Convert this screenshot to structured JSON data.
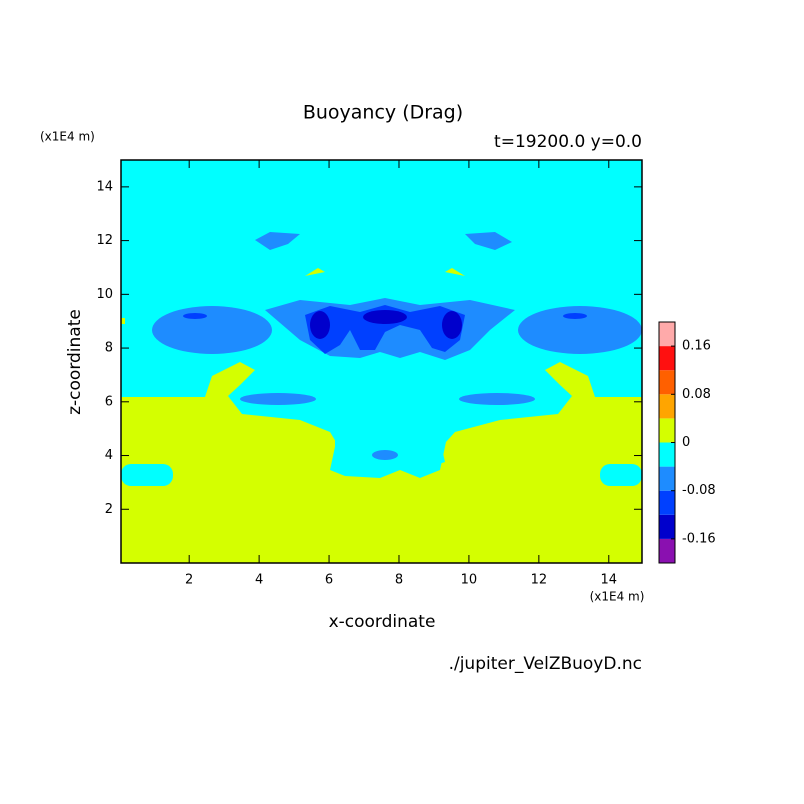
{
  "chart_data": {
    "type": "contour",
    "title": "Buoyancy (Drag)",
    "subtitle": "t=19200.0 y=0.0",
    "x_label": "x-coordinate",
    "y_label": "z-coordinate",
    "x_unit": "(x1E4 m)",
    "y_unit": "(x1E4 m)",
    "footer": "./jupiter_VelZBuoyD.nc",
    "xlim": [
      0.05,
      14.95
    ],
    "ylim": [
      0,
      15
    ],
    "xticks": [
      2,
      4,
      6,
      8,
      10,
      12,
      14
    ],
    "yticks": [
      2,
      4,
      6,
      8,
      10,
      12,
      14
    ],
    "colorbar": {
      "levels": [
        -0.2,
        -0.16,
        -0.12,
        -0.08,
        -0.04,
        0,
        0.04,
        0.08,
        0.12,
        0.16,
        0.2
      ],
      "colors": [
        "#8a10b0",
        "#0000cc",
        "#0040ff",
        "#1e8cff",
        "#00ffff",
        "#d4ff00",
        "#ffa500",
        "#ff6000",
        "#ff1010",
        "#ffaaaa"
      ],
      "ticks": [
        -0.16,
        -0.08,
        0,
        0.08,
        0.16
      ]
    }
  }
}
